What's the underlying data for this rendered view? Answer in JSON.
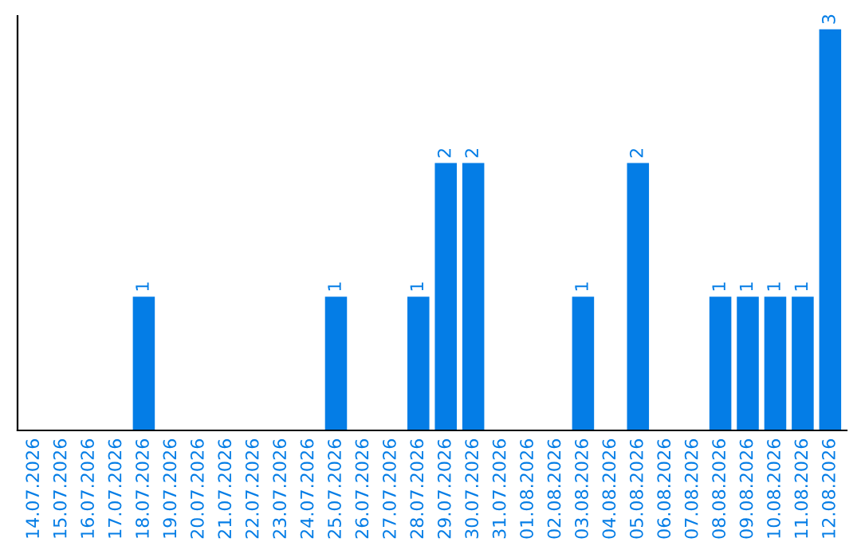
{
  "chart_data": {
    "type": "bar",
    "categories": [
      "14.07.2026",
      "15.07.2026",
      "16.07.2026",
      "17.07.2026",
      "18.07.2026",
      "19.07.2026",
      "20.07.2026",
      "21.07.2026",
      "22.07.2026",
      "23.07.2026",
      "24.07.2026",
      "25.07.2026",
      "26.07.2026",
      "27.07.2026",
      "28.07.2026",
      "29.07.2026",
      "30.07.2026",
      "31.07.2026",
      "01.08.2026",
      "02.08.2026",
      "03.08.2026",
      "04.08.2026",
      "05.08.2026",
      "06.08.2026",
      "07.08.2026",
      "08.08.2026",
      "09.08.2026",
      "10.08.2026",
      "11.08.2026",
      "12.08.2026"
    ],
    "values": [
      0,
      0,
      0,
      0,
      1,
      0,
      0,
      0,
      0,
      0,
      0,
      1,
      0,
      0,
      1,
      2,
      2,
      0,
      0,
      0,
      1,
      0,
      2,
      0,
      0,
      1,
      1,
      1,
      1,
      3
    ],
    "value_labels": [
      null,
      null,
      null,
      null,
      "1",
      null,
      null,
      null,
      null,
      null,
      null,
      "1",
      null,
      null,
      "1",
      "2",
      "2",
      null,
      null,
      null,
      "1",
      null,
      "2",
      null,
      null,
      "1",
      "1",
      "1",
      "1",
      "3"
    ],
    "color": "#047de6",
    "ylim": [
      0,
      3.1
    ],
    "tick_labels": "x",
    "grid": false,
    "legend": false
  }
}
